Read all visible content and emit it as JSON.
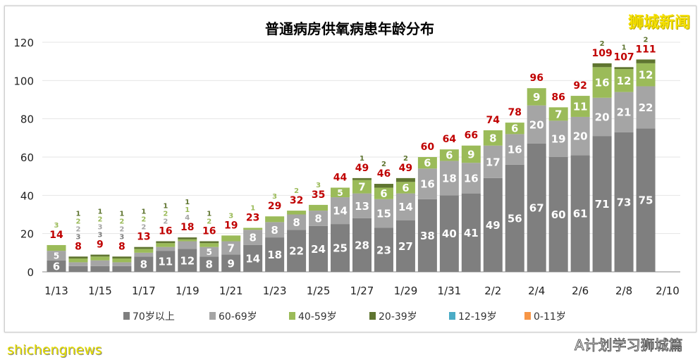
{
  "chart_data": {
    "type": "bar",
    "stacked": true,
    "title": "普通病房供氧病患年龄分布",
    "categories": [
      "1/13",
      "1/14",
      "1/15",
      "1/16",
      "1/17",
      "1/18",
      "1/19",
      "1/20",
      "1/21",
      "1/22",
      "1/23",
      "1/24",
      "1/25",
      "1/26",
      "1/27",
      "1/28",
      "1/29",
      "1/30",
      "1/31",
      "2/1",
      "2/2",
      "2/3",
      "2/4",
      "2/5",
      "2/6",
      "2/7",
      "2/8",
      "2/9",
      "2/10"
    ],
    "tick_labels": [
      "1/13",
      "1/15",
      "1/17",
      "1/19",
      "1/21",
      "1/23",
      "1/25",
      "1/27",
      "1/29",
      "1/31",
      "2/2",
      "2/4",
      "2/6",
      "2/8",
      "2/10"
    ],
    "series": [
      {
        "name": "70岁以上",
        "color": "#7f7f7f",
        "values": [
          6,
          3,
          3,
          3,
          8,
          11,
          12,
          8,
          9,
          14,
          18,
          22,
          24,
          25,
          28,
          23,
          27,
          38,
          40,
          41,
          49,
          56,
          67,
          60,
          61,
          71,
          73,
          75,
          null
        ]
      },
      {
        "name": "60-69岁",
        "color": "#a5a5a5",
        "values": [
          5,
          2,
          3,
          2,
          2,
          2,
          4,
          5,
          7,
          8,
          8,
          8,
          8,
          14,
          13,
          15,
          14,
          16,
          18,
          16,
          17,
          16,
          20,
          19,
          20,
          20,
          21,
          22,
          null
        ]
      },
      {
        "name": "40-59岁",
        "color": "#9bbb59",
        "values": [
          3,
          2,
          2,
          2,
          2,
          2,
          1,
          2,
          3,
          1,
          3,
          2,
          3,
          5,
          7,
          6,
          6,
          6,
          6,
          9,
          8,
          6,
          9,
          7,
          11,
          16,
          12,
          12,
          null
        ]
      },
      {
        "name": "20-39岁",
        "color": "#5f7530",
        "values": [
          0,
          1,
          1,
          1,
          1,
          1,
          1,
          1,
          0,
          0,
          0,
          0,
          0,
          0,
          1,
          2,
          2,
          0,
          0,
          0,
          0,
          0,
          0,
          0,
          0,
          2,
          1,
          2,
          null
        ]
      },
      {
        "name": "12-19岁",
        "color": "#4bacc6",
        "values": [
          0,
          0,
          0,
          0,
          0,
          0,
          0,
          0,
          0,
          0,
          0,
          0,
          0,
          0,
          0,
          0,
          0,
          0,
          0,
          0,
          0,
          0,
          0,
          0,
          0,
          0,
          0,
          0,
          null
        ]
      },
      {
        "name": "0-11岁",
        "color": "#f79646",
        "values": [
          0,
          0,
          0,
          0,
          0,
          0,
          0,
          0,
          0,
          0,
          0,
          0,
          0,
          0,
          0,
          0,
          0,
          0,
          0,
          0,
          0,
          0,
          0,
          0,
          0,
          0,
          0,
          0,
          null
        ]
      }
    ],
    "totals": [
      14,
      8,
      9,
      8,
      13,
      16,
      18,
      16,
      19,
      23,
      29,
      32,
      35,
      44,
      49,
      46,
      49,
      60,
      64,
      66,
      74,
      78,
      96,
      86,
      92,
      109,
      107,
      111,
      null
    ],
    "total_label_color": "#c00000",
    "ylim": [
      0,
      120
    ],
    "yticks": [
      0,
      20,
      40,
      60,
      80,
      100,
      120
    ],
    "grid": true,
    "legend": "bottom",
    "xlabel": "",
    "ylabel": ""
  },
  "watermarks": {
    "top_right": "狮城新闻",
    "bottom_left": "shichengnews",
    "wechat": "A计划学习狮城篇"
  }
}
